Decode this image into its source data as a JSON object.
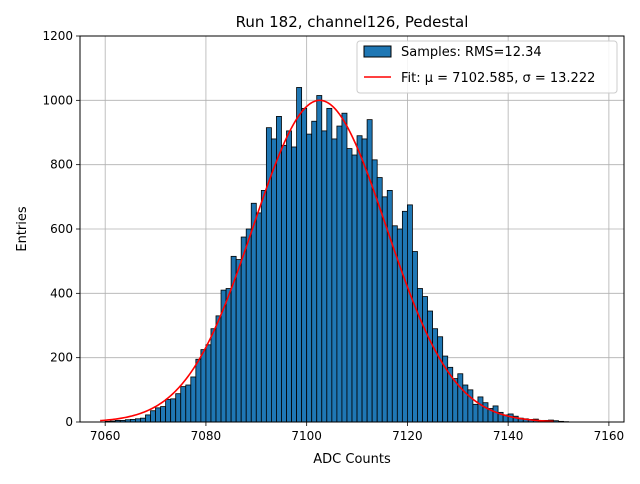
{
  "chart_data": {
    "type": "bar",
    "title": "Run 182, channel126, Pedestal",
    "xlabel": "ADC Counts",
    "ylabel": "Entries",
    "xlim": [
      7055,
      7163
    ],
    "ylim": [
      0,
      1200
    ],
    "x_ticks": [
      7060,
      7080,
      7100,
      7120,
      7140,
      7160
    ],
    "y_ticks": [
      0,
      200,
      400,
      600,
      800,
      1000,
      1200
    ],
    "grid": true,
    "legend_position": "top-right",
    "bin_width": 1,
    "bin_start": 7060,
    "counts": [
      2,
      3,
      5,
      5,
      7,
      8,
      10,
      12,
      22,
      35,
      44,
      48,
      70,
      72,
      88,
      110,
      115,
      140,
      195,
      225,
      240,
      290,
      330,
      410,
      415,
      515,
      505,
      575,
      600,
      680,
      650,
      720,
      915,
      880,
      950,
      860,
      905,
      855,
      1040,
      975,
      895,
      935,
      1015,
      905,
      975,
      880,
      920,
      960,
      850,
      830,
      890,
      880,
      940,
      815,
      760,
      700,
      720,
      610,
      600,
      655,
      675,
      530,
      415,
      390,
      345,
      290,
      265,
      205,
      170,
      135,
      150,
      115,
      100,
      55,
      78,
      60,
      42,
      50,
      30,
      22,
      25,
      18,
      12,
      10,
      8,
      9,
      5,
      5,
      6,
      4,
      2,
      1
    ],
    "series": [
      {
        "name": "Samples: RMS=12.34",
        "kind": "histogram",
        "color": "#1f77b4",
        "edge_color": "#000000"
      },
      {
        "name": "Fit: μ = 7102.585, σ = 13.222",
        "kind": "gaussian",
        "mu": 7102.585,
        "sigma": 13.222,
        "amplitude": 1000,
        "x_range": [
          7059,
          7149
        ],
        "color": "#ff0000"
      }
    ]
  }
}
